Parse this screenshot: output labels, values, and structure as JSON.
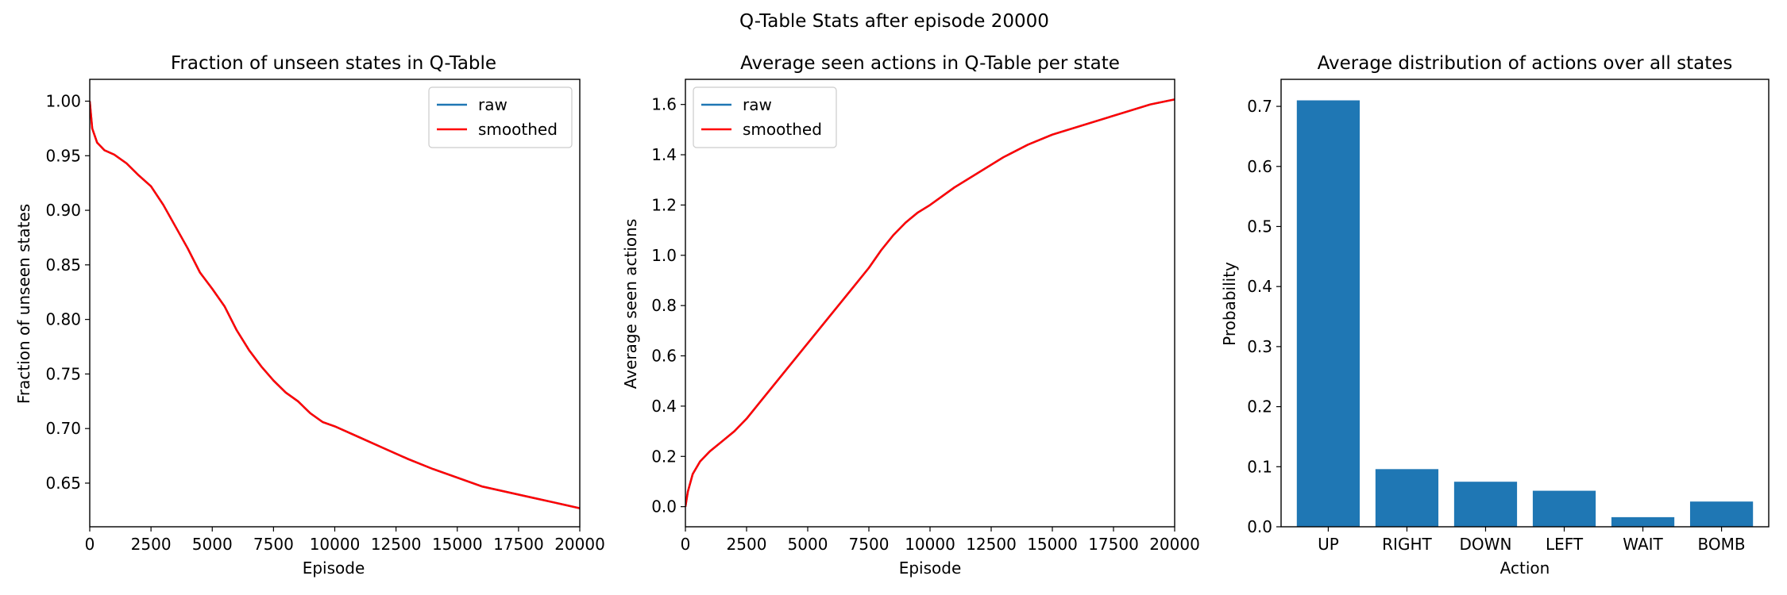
{
  "suptitle": "Q-Table Stats after episode 20000",
  "colors": {
    "raw": "#1f77b4",
    "smoothed": "#ff0000",
    "bar": "#1f77b4"
  },
  "chart_data": [
    {
      "type": "line",
      "title": "Fraction of unseen states in Q-Table",
      "xlabel": "Episode",
      "ylabel": "Fraction of unseen states",
      "xlim": [
        0,
        20000
      ],
      "ylim": [
        0.61,
        1.02
      ],
      "xticks": [
        0,
        2500,
        5000,
        7500,
        10000,
        12500,
        15000,
        17500,
        20000
      ],
      "yticks": [
        0.65,
        0.7,
        0.75,
        0.8,
        0.85,
        0.9,
        0.95,
        1.0
      ],
      "ytick_labels": [
        "0.65",
        "0.70",
        "0.75",
        "0.80",
        "0.85",
        "0.90",
        "0.95",
        "1.00"
      ],
      "legend": {
        "position": "upper-right",
        "entries": [
          "raw",
          "smoothed"
        ]
      },
      "series": [
        {
          "name": "raw",
          "color": "#1f77b4",
          "x": [
            0,
            100,
            300,
            600,
            1000,
            1500,
            2000,
            2500,
            3000,
            3500,
            4000,
            4500,
            5000,
            5500,
            6000,
            6500,
            7000,
            7500,
            8000,
            8500,
            9000,
            9500,
            10000,
            11000,
            12000,
            13000,
            14000,
            15000,
            16000,
            17000,
            18000,
            19000,
            20000
          ],
          "y": [
            1.0,
            0.975,
            0.962,
            0.955,
            0.951,
            0.943,
            0.932,
            0.922,
            0.905,
            0.885,
            0.865,
            0.843,
            0.828,
            0.812,
            0.79,
            0.772,
            0.757,
            0.744,
            0.733,
            0.725,
            0.714,
            0.706,
            0.702,
            0.692,
            0.682,
            0.672,
            0.663,
            0.655,
            0.647,
            0.642,
            0.637,
            0.632,
            0.627
          ]
        },
        {
          "name": "smoothed",
          "color": "#ff0000",
          "x": [
            0,
            100,
            300,
            600,
            1000,
            1500,
            2000,
            2500,
            3000,
            3500,
            4000,
            4500,
            5000,
            5500,
            6000,
            6500,
            7000,
            7500,
            8000,
            8500,
            9000,
            9500,
            10000,
            11000,
            12000,
            13000,
            14000,
            15000,
            16000,
            17000,
            18000,
            19000,
            20000
          ],
          "y": [
            1.0,
            0.975,
            0.962,
            0.955,
            0.951,
            0.943,
            0.932,
            0.922,
            0.905,
            0.885,
            0.865,
            0.843,
            0.828,
            0.812,
            0.79,
            0.772,
            0.757,
            0.744,
            0.733,
            0.725,
            0.714,
            0.706,
            0.702,
            0.692,
            0.682,
            0.672,
            0.663,
            0.655,
            0.647,
            0.642,
            0.637,
            0.632,
            0.627
          ]
        }
      ]
    },
    {
      "type": "line",
      "title": "Average seen actions in Q-Table per state",
      "xlabel": "Episode",
      "ylabel": "Average seen actions",
      "xlim": [
        0,
        20000
      ],
      "ylim": [
        -0.08,
        1.7
      ],
      "xticks": [
        0,
        2500,
        5000,
        7500,
        10000,
        12500,
        15000,
        17500,
        20000
      ],
      "yticks": [
        0.0,
        0.2,
        0.4,
        0.6,
        0.8,
        1.0,
        1.2,
        1.4,
        1.6
      ],
      "ytick_labels": [
        "0.0",
        "0.2",
        "0.4",
        "0.6",
        "0.8",
        "1.0",
        "1.2",
        "1.4",
        "1.6"
      ],
      "legend": {
        "position": "upper-left",
        "entries": [
          "raw",
          "smoothed"
        ]
      },
      "series": [
        {
          "name": "raw",
          "color": "#1f77b4",
          "x": [
            0,
            100,
            300,
            600,
            1000,
            1500,
            2000,
            2500,
            3000,
            3500,
            4000,
            4500,
            5000,
            5500,
            6000,
            6500,
            7000,
            7500,
            8000,
            8500,
            9000,
            9500,
            10000,
            11000,
            12000,
            13000,
            14000,
            15000,
            16000,
            17000,
            18000,
            19000,
            20000
          ],
          "y": [
            0.0,
            0.06,
            0.13,
            0.18,
            0.22,
            0.26,
            0.3,
            0.35,
            0.41,
            0.47,
            0.53,
            0.59,
            0.65,
            0.71,
            0.77,
            0.83,
            0.89,
            0.95,
            1.02,
            1.08,
            1.13,
            1.17,
            1.2,
            1.27,
            1.33,
            1.39,
            1.44,
            1.48,
            1.51,
            1.54,
            1.57,
            1.6,
            1.62
          ]
        },
        {
          "name": "smoothed",
          "color": "#ff0000",
          "x": [
            0,
            100,
            300,
            600,
            1000,
            1500,
            2000,
            2500,
            3000,
            3500,
            4000,
            4500,
            5000,
            5500,
            6000,
            6500,
            7000,
            7500,
            8000,
            8500,
            9000,
            9500,
            10000,
            11000,
            12000,
            13000,
            14000,
            15000,
            16000,
            17000,
            18000,
            19000,
            20000
          ],
          "y": [
            0.0,
            0.06,
            0.13,
            0.18,
            0.22,
            0.26,
            0.3,
            0.35,
            0.41,
            0.47,
            0.53,
            0.59,
            0.65,
            0.71,
            0.77,
            0.83,
            0.89,
            0.95,
            1.02,
            1.08,
            1.13,
            1.17,
            1.2,
            1.27,
            1.33,
            1.39,
            1.44,
            1.48,
            1.51,
            1.54,
            1.57,
            1.6,
            1.62
          ]
        }
      ]
    },
    {
      "type": "bar",
      "title": "Average distribution of actions over all states",
      "xlabel": "Action",
      "ylabel": "Probability",
      "ylim": [
        0,
        0.745
      ],
      "yticks": [
        0.0,
        0.1,
        0.2,
        0.3,
        0.4,
        0.5,
        0.6,
        0.7
      ],
      "ytick_labels": [
        "0.0",
        "0.1",
        "0.2",
        "0.3",
        "0.4",
        "0.5",
        "0.6",
        "0.7"
      ],
      "categories": [
        "UP",
        "RIGHT",
        "DOWN",
        "LEFT",
        "WAIT",
        "BOMB"
      ],
      "values": [
        0.71,
        0.096,
        0.075,
        0.06,
        0.016,
        0.042
      ]
    }
  ]
}
